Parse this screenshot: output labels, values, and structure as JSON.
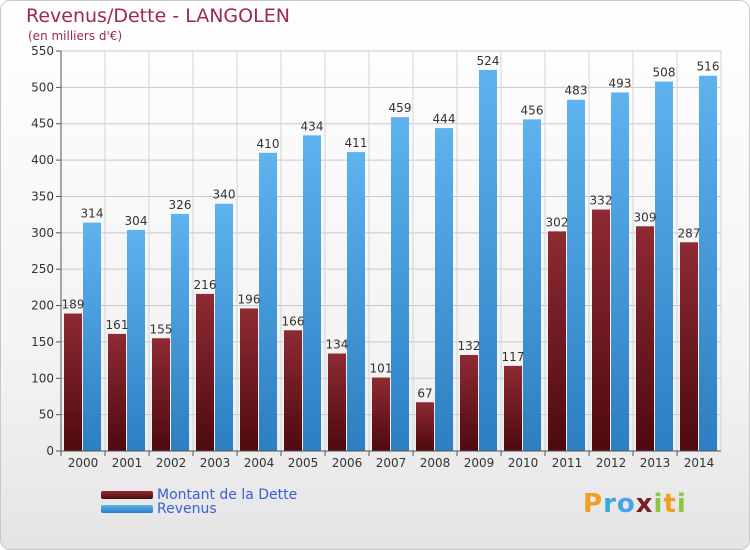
{
  "header": {
    "title": "Revenus/Dette - LANGOLEN",
    "subtitle": "(en milliers d'€)"
  },
  "legend": {
    "items": [
      {
        "label": "Montant de la Dette",
        "color": "#7a1f26"
      },
      {
        "label": "Revenus",
        "color": "#4aa3e6"
      }
    ]
  },
  "logo": {
    "letters": [
      "P",
      "r",
      "o",
      "x",
      "i",
      "t",
      "i"
    ],
    "colors": [
      "#f0a020",
      "#3aa7d9",
      "#4aa3e6",
      "#7a1f26",
      "#8cc63f",
      "#f0a020",
      "#8cc63f"
    ]
  },
  "chart_data": {
    "type": "bar",
    "categories": [
      "2000",
      "2001",
      "2002",
      "2003",
      "2004",
      "2005",
      "2006",
      "2007",
      "2008",
      "2009",
      "2010",
      "2011",
      "2012",
      "2013",
      "2014"
    ],
    "series": [
      {
        "name": "Montant de la Dette",
        "color": "#7a1f26",
        "values": [
          189,
          161,
          155,
          216,
          196,
          166,
          134,
          101,
          67,
          132,
          117,
          302,
          332,
          309,
          287
        ]
      },
      {
        "name": "Revenus",
        "color": "#4aa3e6",
        "values": [
          314,
          304,
          326,
          340,
          410,
          434,
          411,
          459,
          444,
          524,
          456,
          483,
          493,
          508,
          516
        ]
      }
    ],
    "title": "Revenus/Dette - LANGOLEN",
    "subtitle": "(en milliers d'€)",
    "ylim": [
      0,
      550
    ],
    "yticks": [
      0,
      50,
      100,
      150,
      200,
      250,
      300,
      350,
      400,
      450,
      500,
      550
    ],
    "grid": true
  }
}
